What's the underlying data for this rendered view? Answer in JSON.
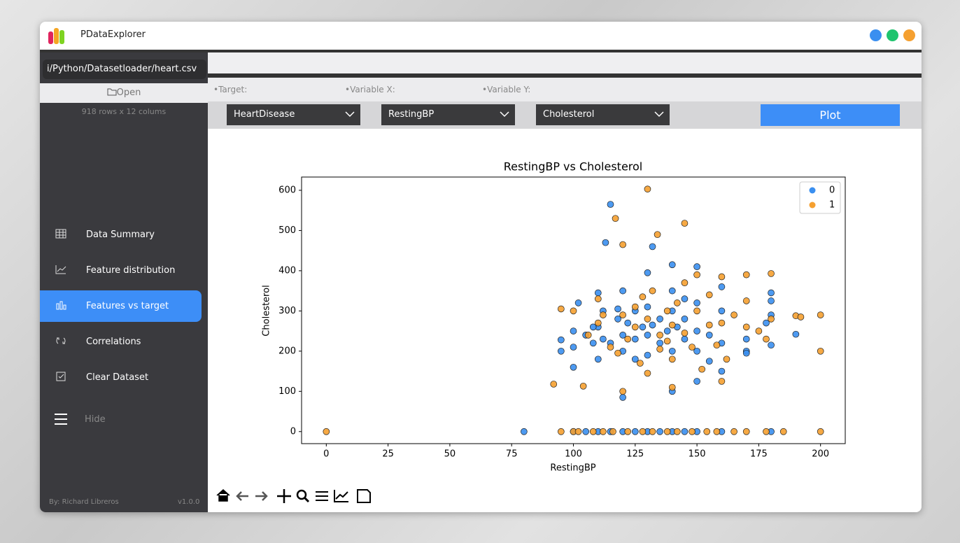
{
  "app": {
    "title": "PDataExplorer"
  },
  "sidebar": {
    "path": "i/Python/Datasetloader/heart.csv",
    "open": "Open",
    "info": "918 rows x 12 colums",
    "items": [
      "Data Summary",
      "Feature distribution",
      "Features vs target",
      "Correlations",
      "Clear Dataset"
    ],
    "hide": "Hide",
    "author": "By: Richard Libreros",
    "version": "v1.0.0"
  },
  "controls": {
    "target_label": "•Target:",
    "x_label": "•Variable X:",
    "y_label": "•Variable Y:",
    "target": "HeartDisease",
    "x": "RestingBP",
    "y": "Cholesterol",
    "plot": "Plot"
  },
  "chart_data": {
    "type": "scatter",
    "title": "RestingBP vs Cholesterol",
    "x_label": "RestingBP",
    "y_label": "Cholesterol",
    "xlim": [
      -10,
      210
    ],
    "ylim": [
      -30,
      633
    ],
    "xticks": [
      0,
      25,
      50,
      75,
      100,
      125,
      150,
      175,
      200
    ],
    "yticks": [
      0,
      100,
      200,
      300,
      400,
      500,
      600
    ],
    "legend": "upper right",
    "series": [
      {
        "name": "0",
        "color": "#3a8ff0",
        "x": [
          80,
          95,
          95,
          100,
          100,
          100,
          102,
          105,
          108,
          110,
          110,
          110,
          112,
          115,
          113,
          115,
          118,
          120,
          120,
          120,
          120,
          122,
          125,
          125,
          128,
          130,
          130,
          130,
          130,
          132,
          135,
          135,
          138,
          140,
          140,
          140,
          140,
          140,
          142,
          145,
          145,
          150,
          150,
          150,
          150,
          150,
          155,
          160,
          160,
          160,
          160,
          170,
          170,
          178,
          180,
          180,
          180,
          180,
          190,
          100,
          105,
          110,
          115,
          120,
          125,
          130,
          135,
          140,
          145,
          150,
          160,
          180,
          170,
          112,
          118,
          125,
          132,
          145,
          155,
          108
        ],
        "values": [
          0,
          200,
          228,
          160,
          210,
          250,
          320,
          240,
          220,
          180,
          260,
          345,
          300,
          565,
          470,
          220,
          280,
          240,
          350,
          85,
          200,
          270,
          230,
          300,
          260,
          395,
          310,
          190,
          240,
          460,
          280,
          220,
          250,
          415,
          300,
          200,
          100,
          350,
          260,
          230,
          280,
          410,
          320,
          250,
          125,
          200,
          240,
          360,
          300,
          150,
          220,
          230,
          200,
          270,
          345,
          325,
          215,
          290,
          242,
          0,
          0,
          0,
          0,
          0,
          0,
          0,
          0,
          0,
          0,
          0,
          0,
          0,
          195,
          230,
          305,
          180,
          265,
          330,
          175,
          260
        ]
      },
      {
        "name": "1",
        "color": "#f5a030",
        "x": [
          0,
          92,
          95,
          100,
          104,
          106,
          110,
          112,
          115,
          117,
          120,
          120,
          120,
          122,
          125,
          127,
          128,
          130,
          130,
          130,
          132,
          134,
          135,
          138,
          140,
          140,
          140,
          142,
          145,
          145,
          148,
          150,
          150,
          152,
          155,
          158,
          160,
          160,
          160,
          162,
          165,
          170,
          170,
          170,
          175,
          178,
          180,
          180,
          190,
          192,
          200,
          200,
          95,
          100,
          102,
          108,
          112,
          116,
          122,
          128,
          132,
          138,
          142,
          148,
          154,
          158,
          165,
          170,
          178,
          185,
          200,
          110,
          125,
          135,
          145,
          155,
          118,
          138
        ],
        "values": [
          0,
          118,
          305,
          300,
          113,
          240,
          330,
          290,
          210,
          530,
          465,
          100,
          290,
          230,
          260,
          170,
          335,
          603,
          280,
          145,
          350,
          490,
          240,
          300,
          265,
          180,
          110,
          320,
          518,
          370,
          210,
          390,
          300,
          155,
          340,
          215,
          385,
          270,
          125,
          180,
          290,
          390,
          325,
          260,
          250,
          230,
          393,
          280,
          288,
          285,
          290,
          200,
          0,
          0,
          0,
          0,
          0,
          0,
          0,
          0,
          0,
          0,
          0,
          0,
          0,
          0,
          0,
          0,
          0,
          0,
          0,
          270,
          310,
          205,
          245,
          265,
          195,
          225
        ]
      }
    ]
  }
}
